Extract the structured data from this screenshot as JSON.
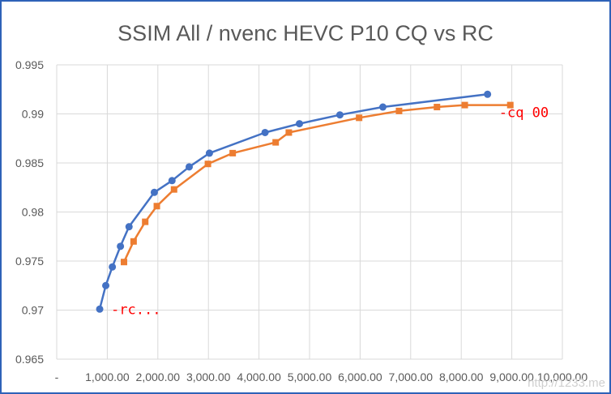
{
  "chart_data": {
    "type": "line",
    "title": "SSIM All / nvenc HEVC P10 CQ vs RC",
    "xlabel": "",
    "ylabel": "",
    "xlim": [
      0,
      10000
    ],
    "ylim": [
      0.965,
      0.995
    ],
    "x_tick_labels": [
      "-",
      "1,000.00",
      "2,000.00",
      "3,000.00",
      "4,000.00",
      "5,000.00",
      "6,000.00",
      "7,000.00",
      "8,000.00",
      "9,000.00",
      "10,000.00"
    ],
    "y_tick_labels": [
      "0.965",
      "0.97",
      "0.975",
      "0.98",
      "0.985",
      "0.99",
      "0.995"
    ],
    "grid": true,
    "legend": "none",
    "series": [
      {
        "color": "#4472c4",
        "marker": "circle",
        "points": [
          [
            850,
            0.9701
          ],
          [
            970,
            0.9725
          ],
          [
            1100,
            0.9744
          ],
          [
            1260,
            0.9765
          ],
          [
            1430,
            0.9785
          ],
          [
            1930,
            0.982
          ],
          [
            2280,
            0.9832
          ],
          [
            2620,
            0.9846
          ],
          [
            3020,
            0.986
          ],
          [
            4120,
            0.9881
          ],
          [
            4800,
            0.989
          ],
          [
            5600,
            0.9899
          ],
          [
            6450,
            0.9907
          ],
          [
            8520,
            0.992
          ]
        ]
      },
      {
        "color": "#ed7d31",
        "marker": "square",
        "points": [
          [
            1330,
            0.9749
          ],
          [
            1520,
            0.977
          ],
          [
            1750,
            0.979
          ],
          [
            1980,
            0.9806
          ],
          [
            2320,
            0.9823
          ],
          [
            2990,
            0.9849
          ],
          [
            3480,
            0.986
          ],
          [
            4330,
            0.9871
          ],
          [
            4590,
            0.9881
          ],
          [
            5980,
            0.9896
          ],
          [
            6770,
            0.9903
          ],
          [
            7520,
            0.9907
          ],
          [
            8070,
            0.9909
          ],
          [
            8970,
            0.9909
          ]
        ]
      }
    ],
    "annotations": [
      {
        "text": "-cq 00",
        "x": 8970,
        "y": 0.9909,
        "color": "#ff0000"
      },
      {
        "text": "-rc...",
        "x": 850,
        "y": 0.9701,
        "color": "#ff0000"
      }
    ]
  },
  "watermark": "http://1233.me"
}
